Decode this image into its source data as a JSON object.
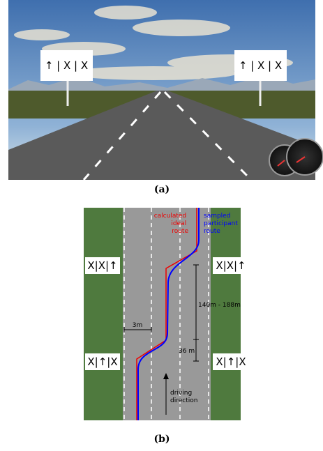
{
  "figure_a": {
    "signs": [
      "↑ | X | X",
      "↑ | X | X"
    ],
    "caption": "(a)"
  },
  "figure_b": {
    "calculated_route": [
      "calculated",
      "ideal",
      "route"
    ],
    "sampled_route": [
      "sampled",
      "participant",
      "route"
    ],
    "signs": [
      "X|X|↑",
      "X|X|↑",
      "X|↑|X",
      "X|↑|X"
    ],
    "distance_long": "140m - 188m",
    "lane_width": "3m",
    "distance_short": "36 m",
    "driving_direction": [
      "driving",
      "direction"
    ],
    "caption": "(b)"
  }
}
